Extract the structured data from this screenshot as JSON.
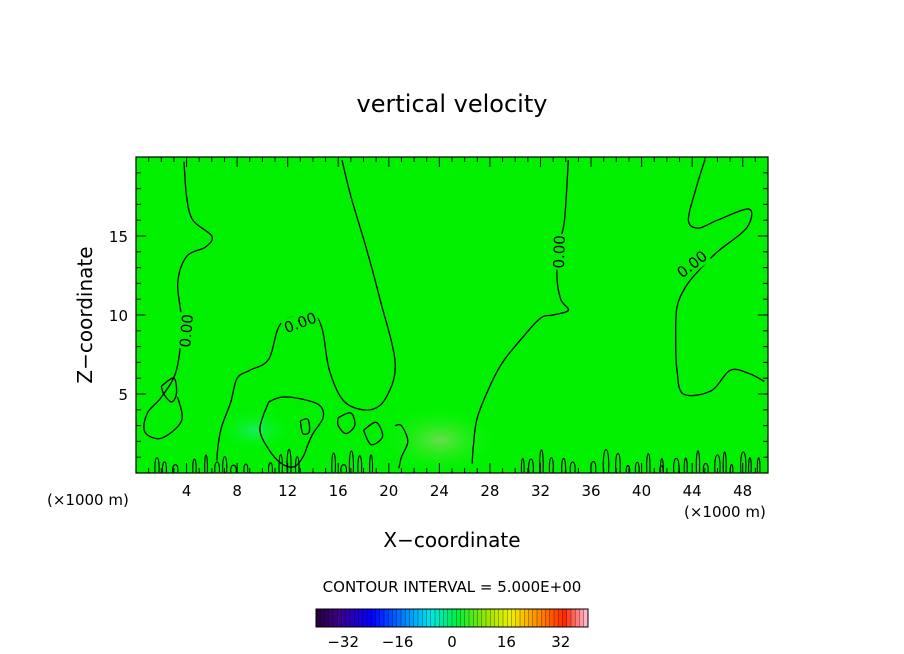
{
  "chart_data": {
    "type": "contour",
    "title": "vertical velocity",
    "xlabel": "X−coordinate",
    "ylabel": "Z−coordinate",
    "x_unit": "(×1000 m)",
    "y_unit": "(×1000 m)",
    "xlim": [
      0,
      50
    ],
    "ylim": [
      0,
      20
    ],
    "x_ticks": [
      4,
      8,
      12,
      16,
      20,
      24,
      28,
      32,
      36,
      40,
      44,
      48
    ],
    "y_ticks": [
      5,
      10,
      15
    ],
    "contour_label": "0.00",
    "contour_interval_text": "CONTOUR INTERVAL = 5.000E+00",
    "colorbar": {
      "ticks": [
        "−32",
        "−16",
        "0",
        "16",
        "32"
      ],
      "tick_values": [
        -32,
        -16,
        0,
        16,
        32
      ],
      "range": [
        -40,
        40
      ]
    },
    "contours": [
      {
        "level": 0,
        "points": [
          [
            3.8,
            19.7
          ],
          [
            4.0,
            17.5
          ],
          [
            4.5,
            16.0
          ],
          [
            6.0,
            15.0
          ],
          [
            5.5,
            14.3
          ],
          [
            4.0,
            13.7
          ],
          [
            3.3,
            12.0
          ],
          [
            3.6,
            9.5
          ],
          [
            3.2,
            6.5
          ],
          [
            2.0,
            4.8
          ],
          [
            0.9,
            3.8
          ],
          [
            0.7,
            2.6
          ],
          [
            2.0,
            2.2
          ],
          [
            3.6,
            3.3
          ],
          [
            3.3,
            4.8
          ]
        ]
      },
      {
        "level": 0,
        "points": [
          [
            2.0,
            5.5
          ],
          [
            3.0,
            6.0
          ],
          [
            3.2,
            5.0
          ],
          [
            2.8,
            4.5
          ],
          [
            2.2,
            5.0
          ],
          [
            2.0,
            5.5
          ]
        ]
      },
      {
        "level": 0,
        "points": [
          [
            16.3,
            19.8
          ],
          [
            17.0,
            17.5
          ],
          [
            18.3,
            14.0
          ],
          [
            19.3,
            11.0
          ],
          [
            20.5,
            7.0
          ],
          [
            19.8,
            4.8
          ],
          [
            18.5,
            4.0
          ],
          [
            16.5,
            4.5
          ],
          [
            15.3,
            6.5
          ],
          [
            14.7,
            9.2
          ],
          [
            13.8,
            10.0
          ],
          [
            11.5,
            9.5
          ],
          [
            10.5,
            7.2
          ],
          [
            9.0,
            6.5
          ],
          [
            8.0,
            6.0
          ],
          [
            7.5,
            4.5
          ],
          [
            6.8,
            3.0
          ],
          [
            6.5,
            1.8
          ],
          [
            6.4,
            0.8
          ]
        ]
      },
      {
        "level": 0,
        "points": [
          [
            34.2,
            19.8
          ],
          [
            33.9,
            16.0
          ],
          [
            33.5,
            14.5
          ],
          [
            33.3,
            12.5
          ],
          [
            33.6,
            11.0
          ],
          [
            34.2,
            10.3
          ],
          [
            33.0,
            10.0
          ],
          [
            32.0,
            9.8
          ],
          [
            30.5,
            8.5
          ],
          [
            29.0,
            7.0
          ],
          [
            28.0,
            5.5
          ],
          [
            27.0,
            3.5
          ],
          [
            26.7,
            1.8
          ],
          [
            26.6,
            0.6
          ]
        ]
      },
      {
        "level": 0,
        "points": [
          [
            45.0,
            19.8
          ],
          [
            44.3,
            18.0
          ],
          [
            43.7,
            16.0
          ],
          [
            44.5,
            15.5
          ],
          [
            46.0,
            16.0
          ],
          [
            48.5,
            16.7
          ],
          [
            48.3,
            15.5
          ],
          [
            46.0,
            14.0
          ],
          [
            44.5,
            12.8
          ],
          [
            43.5,
            11.8
          ],
          [
            42.8,
            10.5
          ],
          [
            42.7,
            8.5
          ],
          [
            42.8,
            6.5
          ],
          [
            43.3,
            5.0
          ],
          [
            45.5,
            5.2
          ],
          [
            47.0,
            6.5
          ],
          [
            48.5,
            6.3
          ],
          [
            49.7,
            5.8
          ]
        ]
      },
      {
        "level": 0,
        "points": [
          [
            10.5,
            4.5
          ],
          [
            11.5,
            4.8
          ],
          [
            13.0,
            4.7
          ],
          [
            14.5,
            4.3
          ],
          [
            14.8,
            3.5
          ],
          [
            14.0,
            2.5
          ],
          [
            13.6,
            1.8
          ],
          [
            13.2,
            1.0
          ],
          [
            12.5,
            0.4
          ],
          [
            11.5,
            0.6
          ],
          [
            10.5,
            1.5
          ],
          [
            9.8,
            2.8
          ],
          [
            10.5,
            4.5
          ]
        ]
      },
      {
        "level": 0,
        "points": [
          [
            13.0,
            3.3
          ],
          [
            13.6,
            3.4
          ],
          [
            13.7,
            2.6
          ],
          [
            13.2,
            2.5
          ],
          [
            13.0,
            3.3
          ]
        ]
      },
      {
        "level": 0,
        "points": [
          [
            16.0,
            3.5
          ],
          [
            17.0,
            3.8
          ],
          [
            17.3,
            3.0
          ],
          [
            16.6,
            2.5
          ],
          [
            16.0,
            3.0
          ],
          [
            16.0,
            3.5
          ]
        ]
      },
      {
        "level": 0,
        "points": [
          [
            18.0,
            2.7
          ],
          [
            19.0,
            3.2
          ],
          [
            19.5,
            2.3
          ],
          [
            18.6,
            1.8
          ],
          [
            18.0,
            2.7
          ]
        ]
      },
      {
        "level": 0,
        "points": [
          [
            20.5,
            3.0
          ],
          [
            21.0,
            3.0
          ],
          [
            21.5,
            2.0
          ],
          [
            21.0,
            1.0
          ],
          [
            20.8,
            0.3
          ]
        ]
      }
    ],
    "contour_labels": [
      {
        "x": 4.0,
        "y": 9.0,
        "angle": -85
      },
      {
        "x": 13.0,
        "y": 9.5,
        "angle": -20
      },
      {
        "x": 33.5,
        "y": 14.0,
        "angle": -88
      },
      {
        "x": 44.0,
        "y": 13.2,
        "angle": -38
      }
    ]
  }
}
